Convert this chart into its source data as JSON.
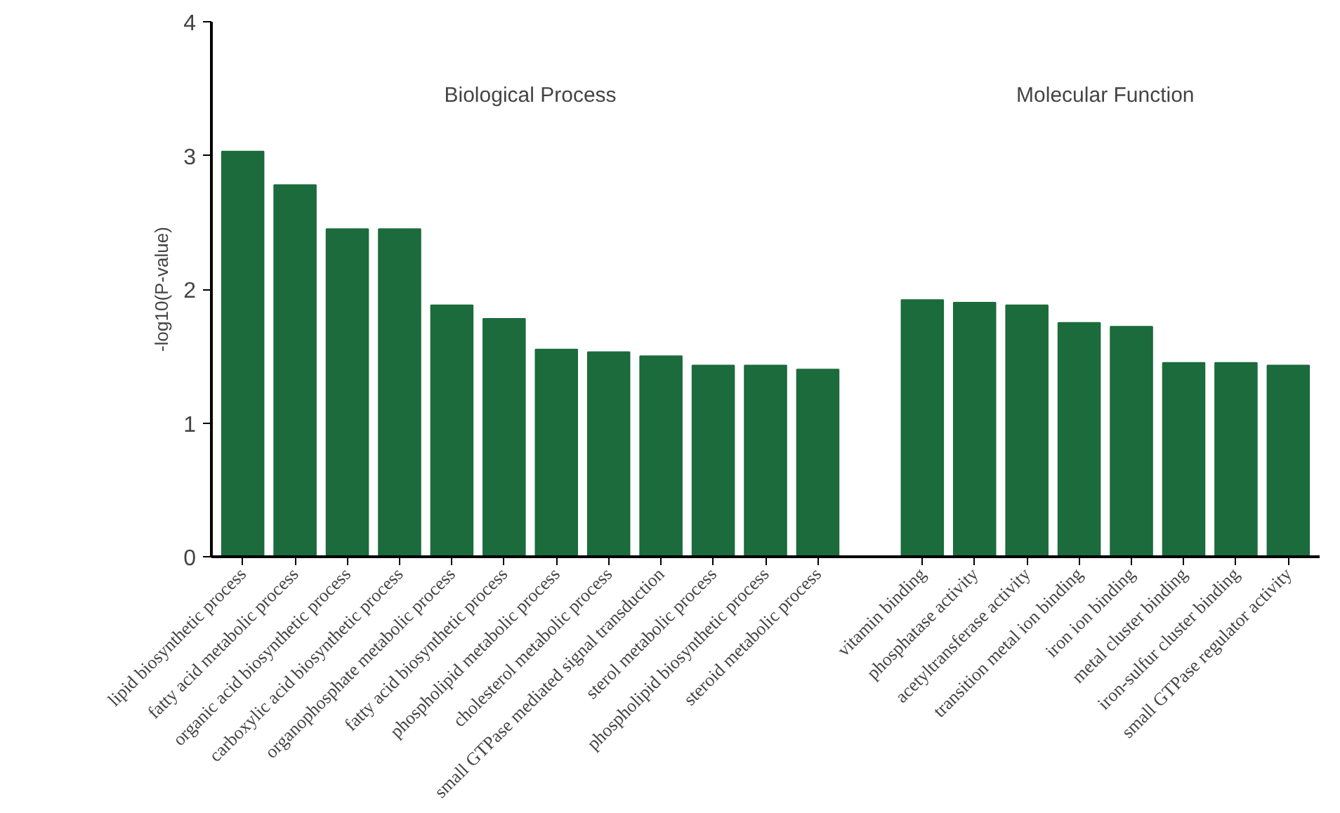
{
  "chart_data": {
    "type": "bar",
    "ylabel": "-log10(P-value)",
    "categories": [
      "lipid biosynthetic process",
      "fatty acid metabolic process",
      "organic acid biosynthetic process",
      "carboxylic acid biosynthetic process",
      "organophosphate metabolic process",
      "fatty acid biosynthetic process",
      "phospholipid metabolic process",
      "cholesterol metabolic process",
      "small GTPase mediated signal transduction",
      "sterol metabolic process",
      "phospholipid biosynthetic process",
      "steroid metabolic process",
      null,
      "vitamin binding",
      "phosphatase activity",
      "acetyltransferase activity",
      "transition metal ion binding",
      "iron ion binding",
      "metal cluster binding",
      "iron-sulfur cluster binding",
      "small GTPase regulator activity"
    ],
    "values": [
      3.03,
      2.78,
      2.45,
      2.45,
      1.88,
      1.78,
      1.55,
      1.53,
      1.5,
      1.43,
      1.43,
      1.4,
      null,
      1.92,
      1.9,
      1.88,
      1.75,
      1.72,
      1.45,
      1.45,
      1.43
    ],
    "color": "#1b6b3c",
    "ylim": [
      0,
      4
    ],
    "yticks": [
      0,
      1,
      2,
      3,
      4
    ],
    "grid": false,
    "annotations": [
      "Biological Process",
      "Molecular Function"
    ]
  }
}
